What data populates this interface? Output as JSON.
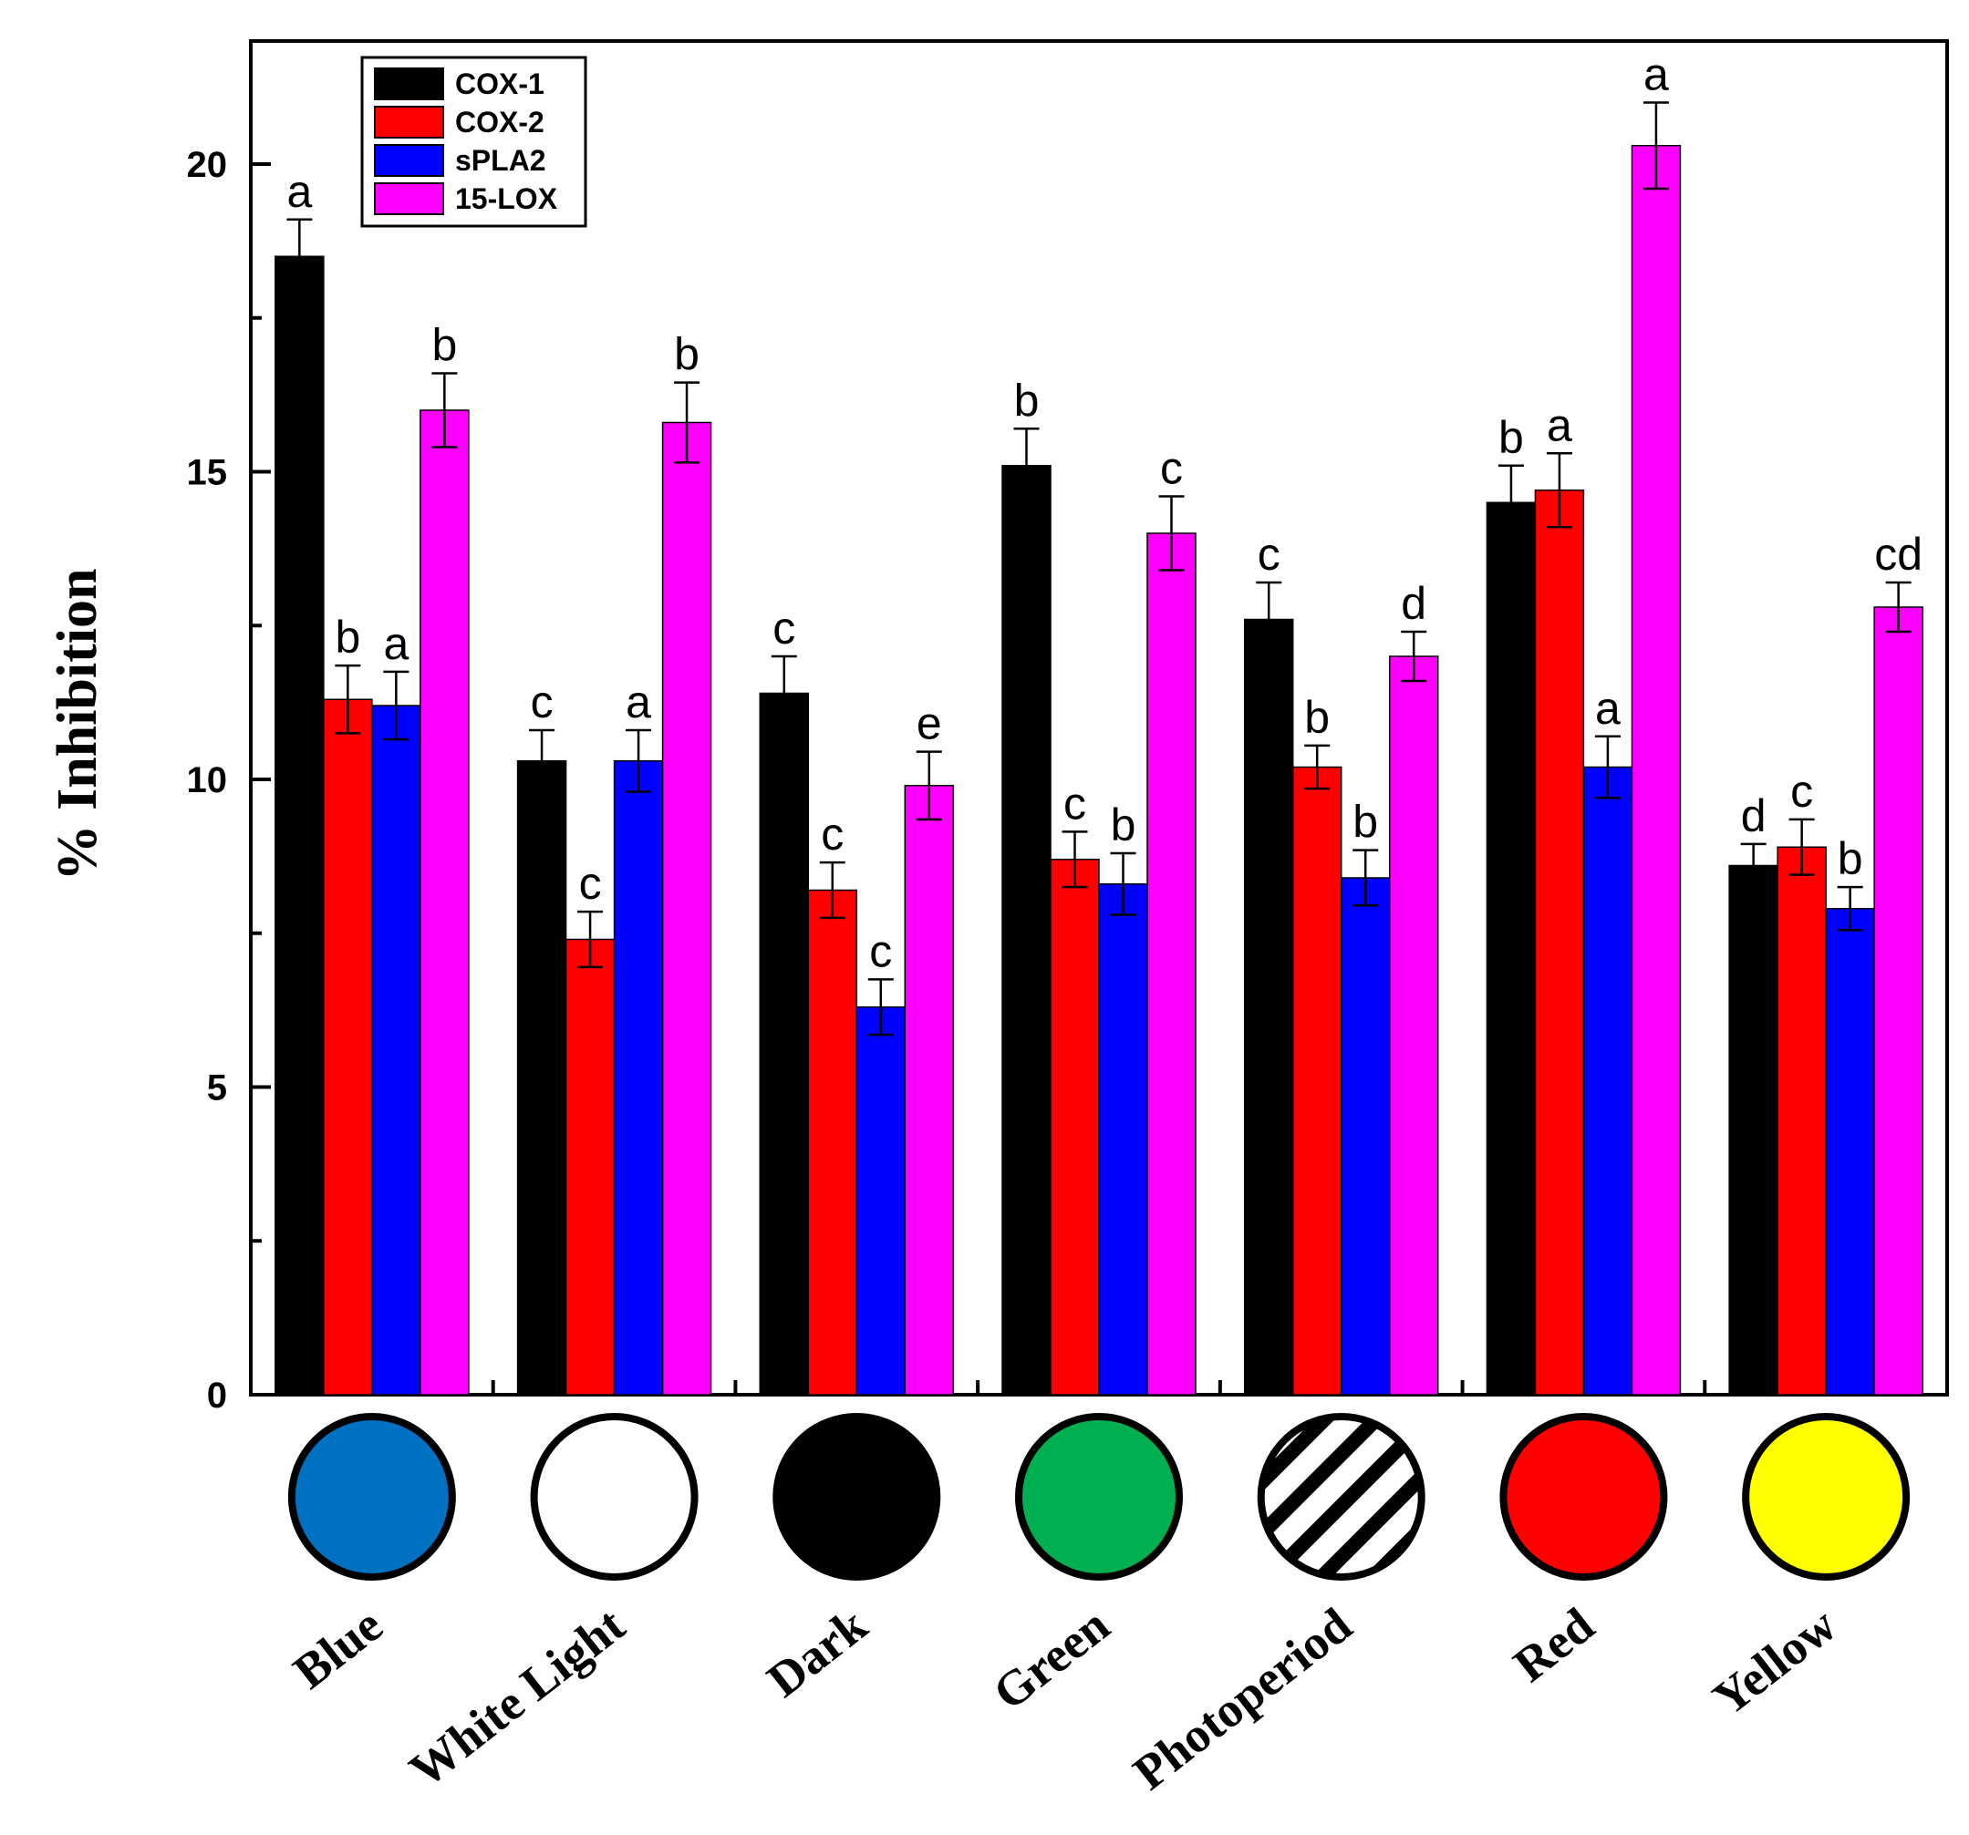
{
  "chart_data": {
    "type": "bar",
    "title": "",
    "xlabel": "",
    "ylabel": "% Inhibition",
    "ylim": [
      0,
      22
    ],
    "yticks": [
      0,
      5,
      10,
      15,
      20
    ],
    "grid": false,
    "legend_position": "top-left",
    "categories": [
      "Blue",
      "White Light",
      "Dark",
      "Green",
      "Photoperiod",
      "Red",
      "Yellow"
    ],
    "category_swatches": [
      {
        "fill": "#0070c0",
        "pattern": "solid"
      },
      {
        "fill": "#ffffff",
        "pattern": "solid"
      },
      {
        "fill": "#000000",
        "pattern": "solid"
      },
      {
        "fill": "#00b050",
        "pattern": "solid"
      },
      {
        "fill": "#ffffff",
        "pattern": "diagonal-stripes"
      },
      {
        "fill": "#ff0000",
        "pattern": "solid"
      },
      {
        "fill": "#ffff00",
        "pattern": "solid"
      }
    ],
    "series": [
      {
        "name": "COX-1",
        "color": "#000000",
        "values": [
          18.5,
          10.3,
          11.4,
          15.1,
          12.6,
          14.5,
          8.6
        ],
        "errors": [
          0.6,
          0.5,
          0.6,
          0.6,
          0.6,
          0.6,
          0.35
        ],
        "labels": [
          "a",
          "c",
          "c",
          "b",
          "c",
          "b",
          "d"
        ]
      },
      {
        "name": "COX-2",
        "color": "#ff0000",
        "values": [
          11.3,
          7.4,
          8.2,
          8.7,
          10.2,
          14.7,
          8.9
        ],
        "errors": [
          0.55,
          0.45,
          0.45,
          0.45,
          0.35,
          0.6,
          0.45
        ],
        "labels": [
          "b",
          "c",
          "c",
          "c",
          "b",
          "a",
          "c"
        ]
      },
      {
        "name": "sPLA2",
        "color": "#0000ff",
        "values": [
          11.2,
          10.3,
          6.3,
          8.3,
          8.4,
          10.2,
          7.9
        ],
        "errors": [
          0.55,
          0.5,
          0.45,
          0.5,
          0.45,
          0.5,
          0.35
        ],
        "labels": [
          "a",
          "a",
          "c",
          "b",
          "b",
          "a",
          "b"
        ]
      },
      {
        "name": "15-LOX",
        "color": "#ff00ff",
        "values": [
          16.0,
          15.8,
          9.9,
          14.0,
          12.0,
          20.3,
          12.8
        ],
        "errors": [
          0.6,
          0.65,
          0.55,
          0.6,
          0.4,
          0.7,
          0.4
        ],
        "labels": [
          "b",
          "b",
          "e",
          "c",
          "d",
          "a",
          "cd"
        ]
      }
    ]
  }
}
